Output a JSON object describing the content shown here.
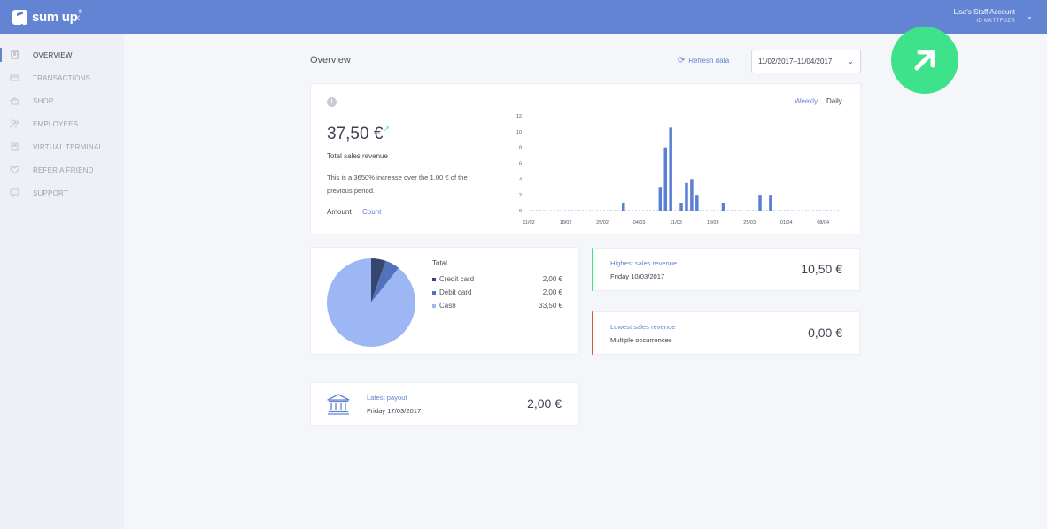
{
  "app": {
    "logo_text": "sum up",
    "logo_sup": "®",
    "collapse_icon": "chevron-left-icon"
  },
  "account": {
    "name": "Lisa's Staff Account",
    "id": "ID MKTTFGZR",
    "chevron_icon": "chevron-down-icon"
  },
  "sidebar": {
    "items": [
      {
        "label": "OVERVIEW",
        "icon": "building-icon",
        "active": true
      },
      {
        "label": "TRANSACTIONS",
        "icon": "transactions-icon",
        "active": false
      },
      {
        "label": "SHOP",
        "icon": "shop-icon",
        "active": false
      },
      {
        "label": "EMPLOYEES",
        "icon": "employees-icon",
        "active": false
      },
      {
        "label": "VIRTUAL TERMINAL",
        "icon": "terminal-icon",
        "active": false
      },
      {
        "label": "REFER A FRIEND",
        "icon": "heart-icon",
        "active": false
      },
      {
        "label": "SUPPORT",
        "icon": "chat-icon",
        "active": false
      }
    ]
  },
  "header": {
    "title": "Overview",
    "refresh_label": "Refresh data",
    "date_range": "11/02/2017–11/04/2017"
  },
  "revenue": {
    "value": "37,50 €",
    "label": "Total sales revenue",
    "description": "This is a 3650% increase over the 1,00 € of the previous period.",
    "toggle_amount": "Amount",
    "toggle_count": "Count",
    "period_weekly": "Weekly",
    "period_daily": "Daily"
  },
  "chart_data": {
    "type": "bar",
    "title": "",
    "xlabel": "",
    "ylabel": "",
    "ylim": [
      0,
      12
    ],
    "y_ticks": [
      "0",
      "2",
      "4",
      "6",
      "8",
      "10",
      "12"
    ],
    "x_tick_labels": [
      "11/02",
      "18/02",
      "25/02",
      "04/03",
      "11/03",
      "18/03",
      "25/03",
      "01/04",
      "08/04"
    ],
    "x_start": "11/02",
    "x_end": "11/04",
    "dates": [
      "01/03",
      "08/03",
      "09/03",
      "10/03",
      "12/03",
      "13/03",
      "14/03",
      "15/03",
      "20/03",
      "27/03",
      "29/03"
    ],
    "values": [
      1.0,
      3.0,
      8.0,
      10.5,
      1.0,
      3.5,
      4.0,
      2.0,
      1.0,
      2.0,
      2.0
    ],
    "bar_color": "#5a7fd4",
    "grid": false
  },
  "payment_methods": {
    "title": "Total",
    "items": [
      {
        "name": "Credit card",
        "value": "2,00 €",
        "amount": 2.0,
        "color": "#35476e"
      },
      {
        "name": "Debit card",
        "value": "2,00 €",
        "amount": 2.0,
        "color": "#5272bd"
      },
      {
        "name": "Cash",
        "value": "33,50 €",
        "amount": 33.5,
        "color": "#9db6f4"
      }
    ]
  },
  "highest": {
    "label": "Highest sales revenue",
    "date": "Friday 10/03/2017",
    "value": "10,50 €",
    "accent": "#3ee28a"
  },
  "lowest": {
    "label": "Lowest sales revenue",
    "note": "Multiple occurrences",
    "value": "0,00 €",
    "accent": "#e0533f"
  },
  "payout": {
    "label": "Latest payout",
    "date": "Friday 17/03/2017",
    "value": "2,00 €",
    "icon": "bank-icon"
  },
  "fab": {
    "icon": "arrow-up-right-icon",
    "color": "#3ee28a"
  },
  "colors": {
    "brand": "#6383d3",
    "sidebar_bg": "#eef0f6"
  }
}
